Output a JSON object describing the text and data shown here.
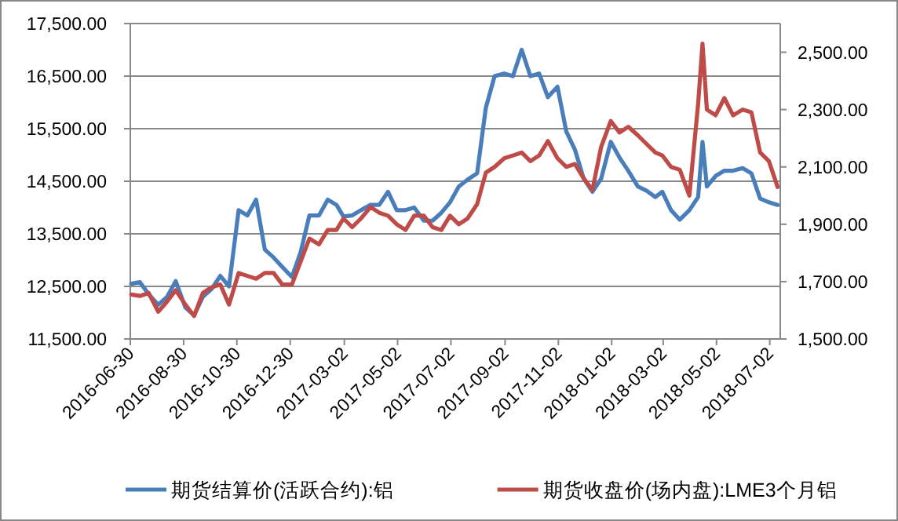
{
  "chart_data": {
    "type": "line",
    "x": [
      "2016-07-01",
      "2016-07-11",
      "2016-07-21",
      "2016-08-01",
      "2016-08-11",
      "2016-08-21",
      "2016-09-01",
      "2016-09-11",
      "2016-09-21",
      "2016-10-01",
      "2016-10-11",
      "2016-10-21",
      "2016-11-01",
      "2016-11-11",
      "2016-11-21",
      "2016-12-01",
      "2016-12-11",
      "2016-12-21",
      "2017-01-01",
      "2017-01-11",
      "2017-01-21",
      "2017-02-01",
      "2017-02-11",
      "2017-02-21",
      "2017-03-01",
      "2017-03-11",
      "2017-03-21",
      "2017-04-01",
      "2017-04-11",
      "2017-04-21",
      "2017-05-01",
      "2017-05-11",
      "2017-05-21",
      "2017-06-01",
      "2017-06-11",
      "2017-06-21",
      "2017-07-01",
      "2017-07-11",
      "2017-07-21",
      "2017-08-01",
      "2017-08-11",
      "2017-08-21",
      "2017-09-01",
      "2017-09-11",
      "2017-09-21",
      "2017-10-01",
      "2017-10-11",
      "2017-10-21",
      "2017-11-01",
      "2017-11-11",
      "2017-11-21",
      "2017-12-01",
      "2017-12-11",
      "2017-12-21",
      "2018-01-01",
      "2018-01-11",
      "2018-01-21",
      "2018-02-01",
      "2018-02-11",
      "2018-02-21",
      "2018-03-01",
      "2018-03-11",
      "2018-03-21",
      "2018-04-01",
      "2018-04-11",
      "2018-04-16",
      "2018-04-21",
      "2018-05-01",
      "2018-05-11",
      "2018-05-21",
      "2018-06-01",
      "2018-06-11",
      "2018-06-21",
      "2018-07-01",
      "2018-07-11"
    ],
    "series": [
      {
        "name": "期货结算价(活跃合约):铝",
        "color": "#4a7ebb",
        "values": [
          12550,
          12580,
          12350,
          12150,
          12300,
          12600,
          12100,
          11950,
          12300,
          12450,
          12700,
          12500,
          13950,
          13850,
          14150,
          13200,
          13050,
          12870,
          12680,
          13150,
          13850,
          13850,
          14150,
          14050,
          13830,
          13850,
          13950,
          14050,
          14050,
          14300,
          13950,
          13950,
          14000,
          13750,
          13750,
          13900,
          14100,
          14400,
          14530,
          14650,
          15900,
          16500,
          16550,
          16500,
          17000,
          16500,
          16550,
          16100,
          16300,
          15450,
          15100,
          14550,
          14300,
          14550,
          15250,
          14950,
          14700,
          14400,
          14320,
          14200,
          14300,
          13950,
          13770,
          13950,
          14200,
          15250,
          14400,
          14600,
          14700,
          14700,
          14750,
          14650,
          14170,
          14100,
          14050
        ]
      },
      {
        "name": "期货收盘价(场内盘):LME3个月铝",
        "color": "#be4b48",
        "axis": "y2",
        "values": [
          1655,
          1650,
          1660,
          1595,
          1630,
          1670,
          1620,
          1580,
          1660,
          1680,
          1690,
          1620,
          1730,
          1720,
          1710,
          1730,
          1730,
          1690,
          1690,
          1770,
          1850,
          1830,
          1880,
          1880,
          1920,
          1890,
          1920,
          1960,
          1940,
          1930,
          1900,
          1880,
          1930,
          1930,
          1890,
          1880,
          1930,
          1900,
          1920,
          1970,
          2080,
          2100,
          2130,
          2140,
          2150,
          2120,
          2140,
          2190,
          2130,
          2100,
          2110,
          2060,
          2020,
          2170,
          2260,
          2220,
          2240,
          2210,
          2180,
          2150,
          2140,
          2100,
          2090,
          2000,
          2320,
          2530,
          2300,
          2280,
          2340,
          2280,
          2300,
          2290,
          2150,
          2120,
          2030
        ]
      }
    ],
    "xlim": [
      "2016-06-30",
      "2018-07-14"
    ],
    "xticks": [
      "2016-06-30",
      "2016-08-30",
      "2016-10-30",
      "2016-12-30",
      "2017-03-02",
      "2017-05-02",
      "2017-07-02",
      "2017-09-02",
      "2017-11-02",
      "2018-01-02",
      "2018-03-02",
      "2018-05-02",
      "2018-07-02"
    ],
    "ylim": [
      11500,
      17500
    ],
    "yticks": [
      {
        "value": 11500,
        "label": "11,500.00"
      },
      {
        "value": 12500,
        "label": "12,500.00"
      },
      {
        "value": 13500,
        "label": "13,500.00"
      },
      {
        "value": 14500,
        "label": "14,500.00"
      },
      {
        "value": 15500,
        "label": "15,500.00"
      },
      {
        "value": 16500,
        "label": "16,500.00"
      },
      {
        "value": 17500,
        "label": "17,500.00"
      }
    ],
    "y2lim": [
      1500,
      2600
    ],
    "y2ticks": [
      {
        "value": 1500,
        "label": "1,500.00"
      },
      {
        "value": 1700,
        "label": "1,700.00"
      },
      {
        "value": 1900,
        "label": "1,900.00"
      },
      {
        "value": 2100,
        "label": "2,100.00"
      },
      {
        "value": 2300,
        "label": "2,300.00"
      },
      {
        "value": 2500,
        "label": "2,500.00"
      }
    ],
    "grid": "y",
    "legend": "bottom",
    "marker": "none",
    "line_style": "solid"
  }
}
